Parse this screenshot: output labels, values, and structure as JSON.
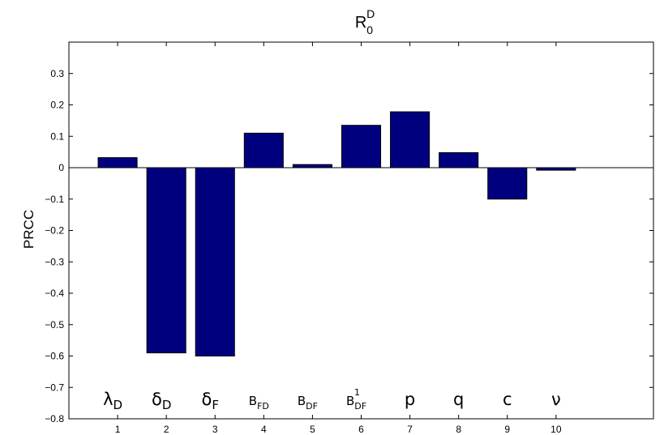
{
  "chart_data": {
    "type": "bar",
    "title": {
      "main": "R",
      "subscript": "0",
      "superscript": "D"
    },
    "xlabel": "",
    "ylabel": "PRCC",
    "ylim": [
      -0.8,
      0.4
    ],
    "xlim": [
      0,
      12
    ],
    "yticks": [
      "0.3",
      "0.2",
      "0.1",
      "0",
      "−0.1",
      "−0.2",
      "−0.3",
      "−0.4",
      "−0.5",
      "−0.6",
      "−0.7",
      "−0.8"
    ],
    "ytick_values": [
      0.3,
      0.2,
      0.1,
      0,
      -0.1,
      -0.2,
      -0.3,
      -0.4,
      -0.5,
      -0.6,
      -0.7,
      -0.8
    ],
    "categories": [
      "1",
      "2",
      "3",
      "4",
      "5",
      "6",
      "7",
      "8",
      "9",
      "10"
    ],
    "values": [
      0.032,
      -0.59,
      -0.6,
      0.11,
      0.01,
      0.135,
      0.178,
      0.048,
      -0.1,
      -0.008
    ],
    "parameter_labels": [
      {
        "main": "λ",
        "sub": "D",
        "sup": ""
      },
      {
        "main": "δ",
        "sub": "D",
        "sup": ""
      },
      {
        "main": "δ",
        "sub": "F",
        "sup": ""
      },
      {
        "main": "B",
        "sub": "FD",
        "sup": ""
      },
      {
        "main": "B",
        "sub": "DF",
        "sup": ""
      },
      {
        "main": "B",
        "sub": "DF",
        "sup": "1"
      },
      {
        "main": "p",
        "sub": "",
        "sup": ""
      },
      {
        "main": "q",
        "sub": "",
        "sup": ""
      },
      {
        "main": "c",
        "sub": "",
        "sup": ""
      },
      {
        "main": "ν",
        "sub": "",
        "sup": ""
      }
    ],
    "bar_color": "#00007f",
    "grid": false,
    "legend": "none"
  }
}
